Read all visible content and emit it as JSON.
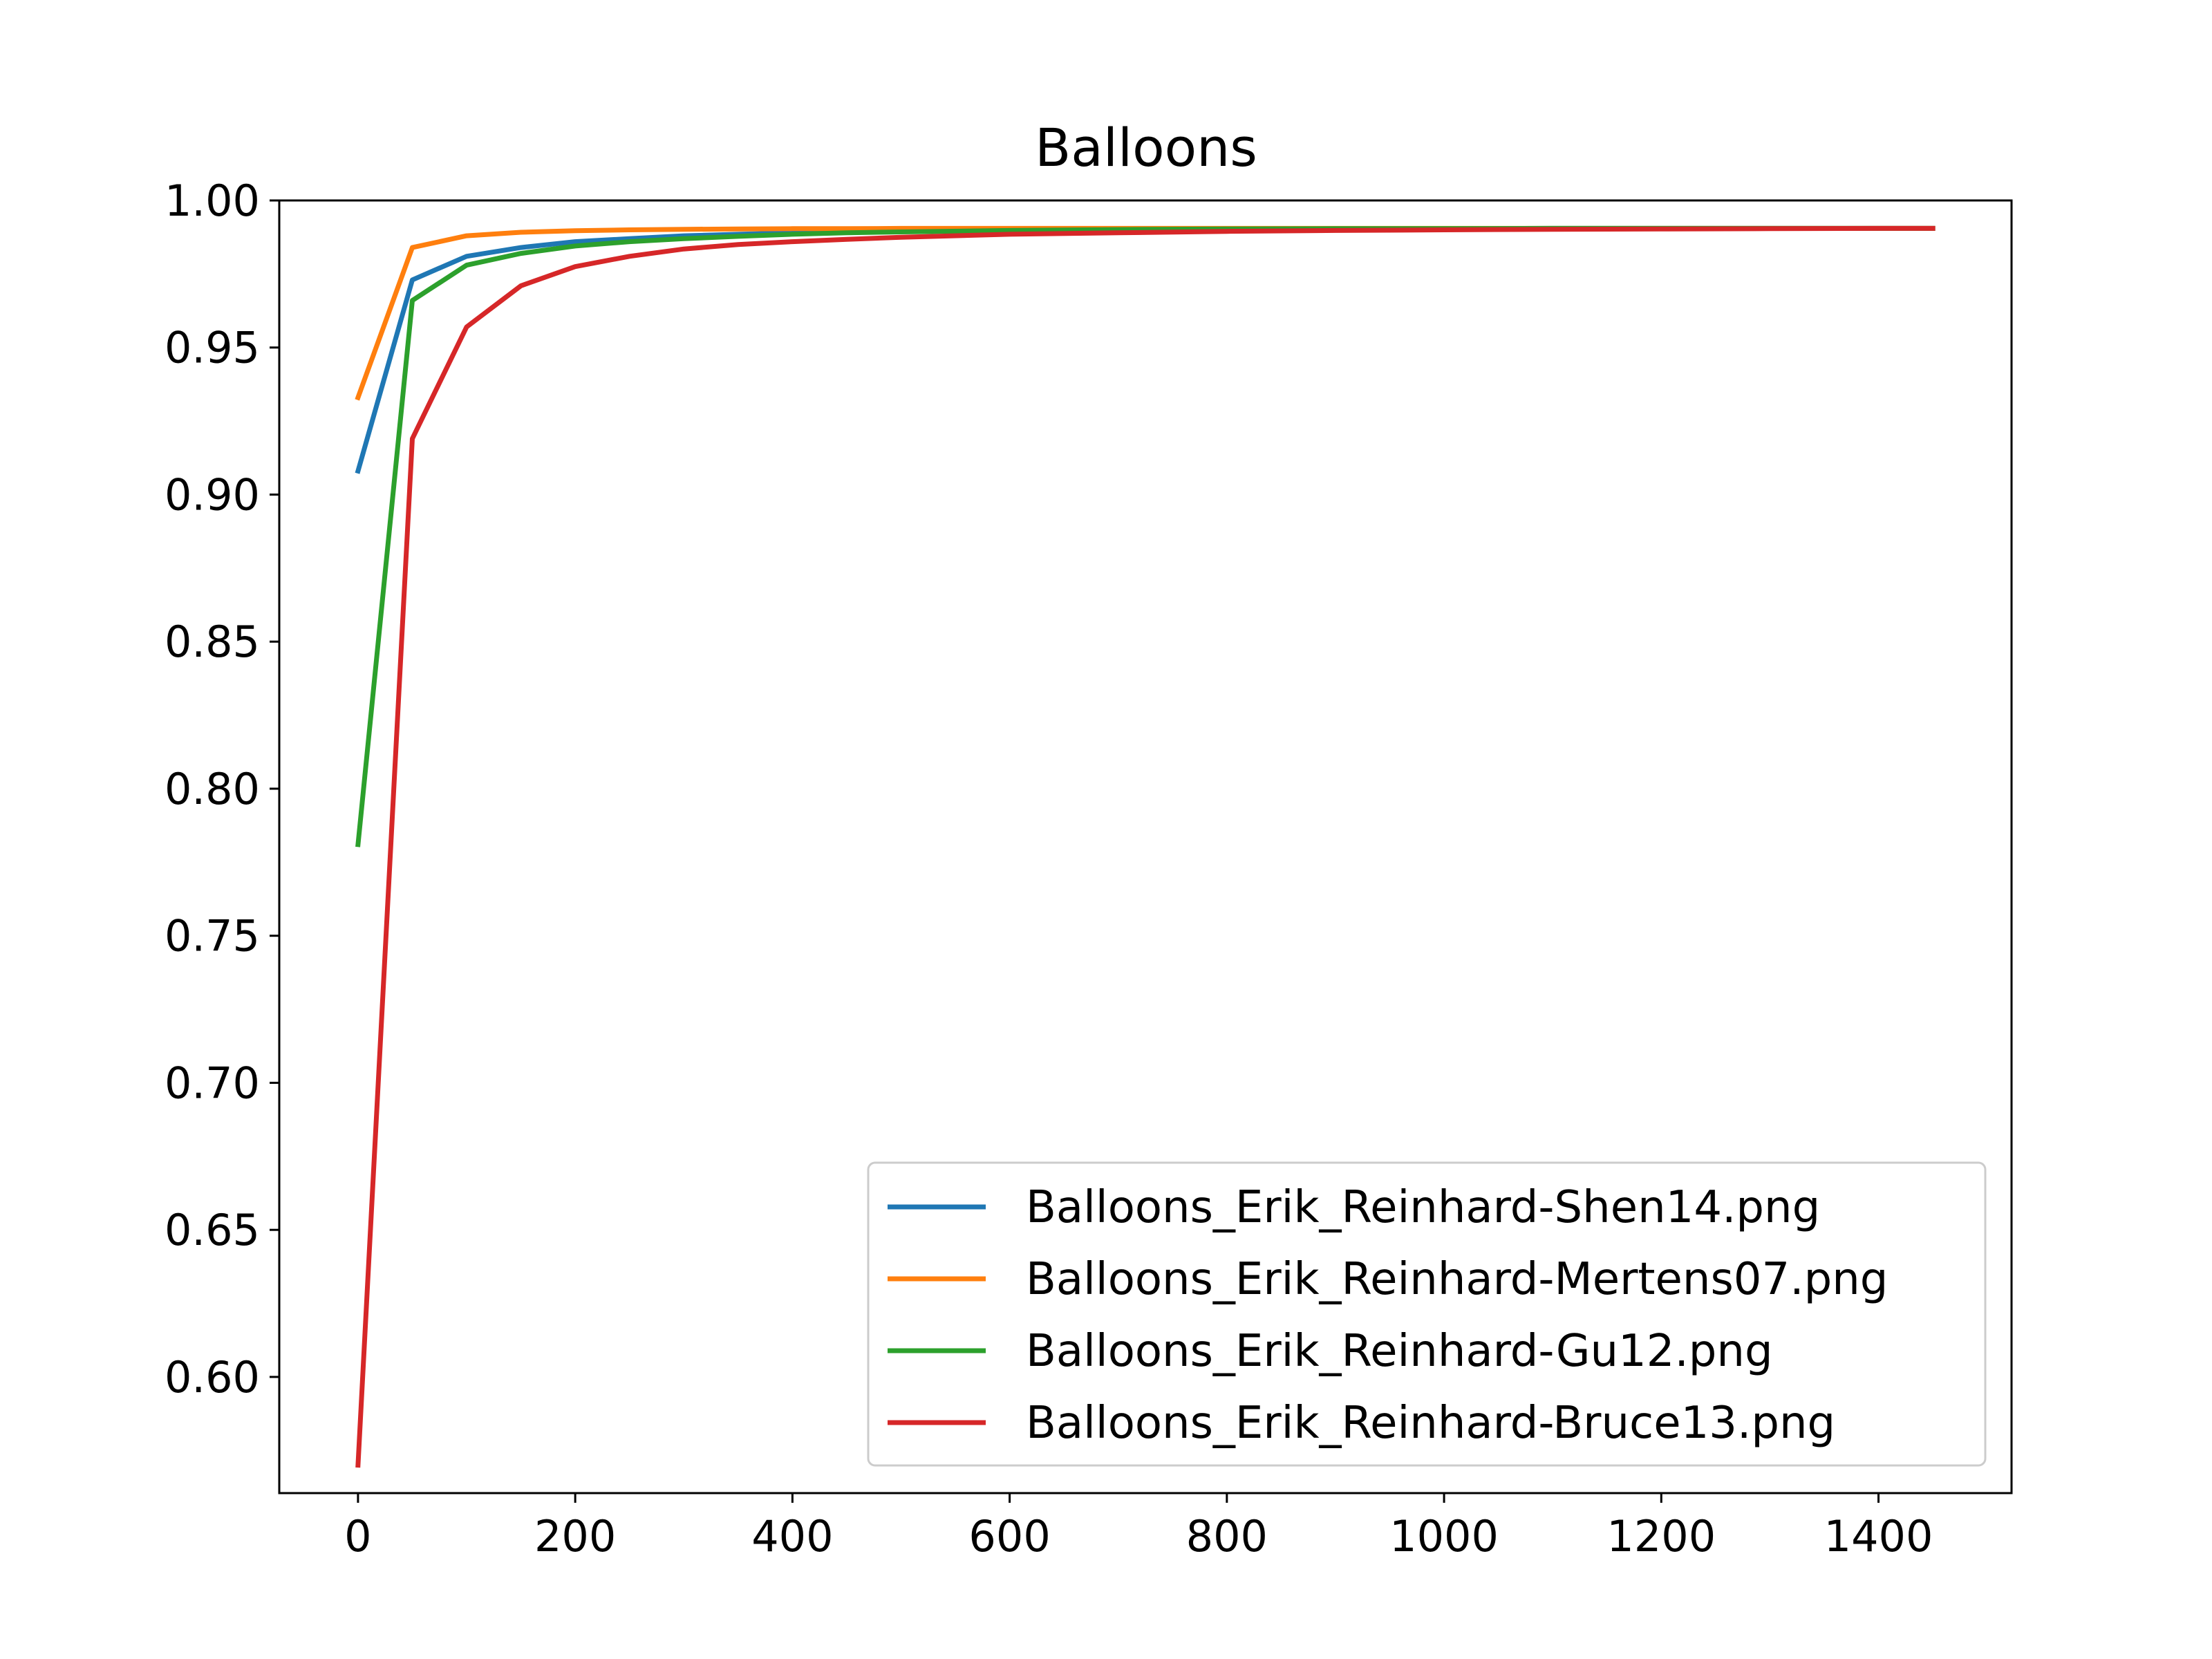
{
  "chart_data": {
    "type": "line",
    "title": "Balloons",
    "xlabel": "",
    "ylabel": "",
    "xlim": [
      -72.5,
      1522.5
    ],
    "ylim": [
      0.5605,
      1.0
    ],
    "xticks": [
      0,
      200,
      400,
      600,
      800,
      1000,
      1200,
      1400
    ],
    "xtick_labels": [
      "0",
      "200",
      "400",
      "600",
      "800",
      "1000",
      "1200",
      "1400"
    ],
    "yticks": [
      0.6,
      0.65,
      0.7,
      0.75,
      0.8,
      0.85,
      0.9,
      0.95,
      1.0
    ],
    "ytick_labels": [
      "0.60",
      "0.65",
      "0.70",
      "0.75",
      "0.80",
      "0.85",
      "0.90",
      "0.95",
      "1.00"
    ],
    "grid": false,
    "legend_position": "lower-right",
    "x": [
      0,
      50,
      100,
      150,
      200,
      250,
      300,
      350,
      400,
      450,
      500,
      600,
      700,
      800,
      900,
      1000,
      1100,
      1200,
      1300,
      1400,
      1450
    ],
    "series": [
      {
        "name": "Balloons_Erik_Reinhard-Shen14.png",
        "color": "#1f77b4",
        "values": [
          0.908,
          0.973,
          0.981,
          0.984,
          0.986,
          0.987,
          0.988,
          0.9885,
          0.989,
          0.9893,
          0.9896,
          0.99,
          0.9902,
          0.9903,
          0.9904,
          0.9904,
          0.9905,
          0.9905,
          0.9905,
          0.9905,
          0.9905
        ]
      },
      {
        "name": "Balloons_Erik_Reinhard-Mertens07.png",
        "color": "#ff7f0e",
        "values": [
          0.933,
          0.984,
          0.988,
          0.9892,
          0.9897,
          0.99,
          0.9902,
          0.9903,
          0.9904,
          0.9904,
          0.9905,
          0.9905,
          0.9905,
          0.9905,
          0.9905,
          0.9905,
          0.9905,
          0.9905,
          0.9905,
          0.9905,
          0.9905
        ]
      },
      {
        "name": "Balloons_Erik_Reinhard-Gu12.png",
        "color": "#2ca02c",
        "values": [
          0.781,
          0.966,
          0.978,
          0.982,
          0.9845,
          0.986,
          0.987,
          0.9878,
          0.9885,
          0.989,
          0.9893,
          0.9898,
          0.9901,
          0.9903,
          0.9904,
          0.9904,
          0.9905,
          0.9905,
          0.9905,
          0.9905,
          0.9905
        ]
      },
      {
        "name": "Balloons_Erik_Reinhard-Bruce13.png",
        "color": "#d62728",
        "values": [
          0.57,
          0.919,
          0.957,
          0.971,
          0.9775,
          0.981,
          0.9835,
          0.985,
          0.986,
          0.9868,
          0.9875,
          0.9885,
          0.989,
          0.9895,
          0.9898,
          0.99,
          0.9902,
          0.9903,
          0.9904,
          0.9905,
          0.9905
        ]
      }
    ]
  }
}
